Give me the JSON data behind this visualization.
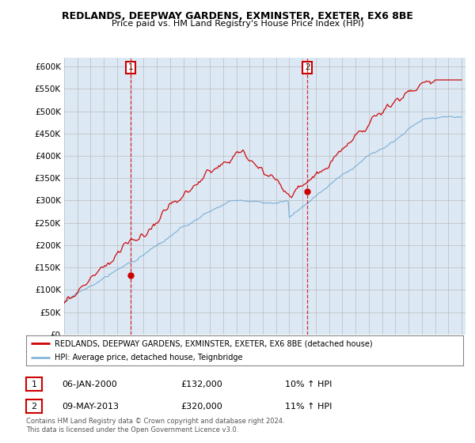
{
  "title": "REDLANDS, DEEPWAY GARDENS, EXMINSTER, EXETER, EX6 8BE",
  "subtitle": "Price paid vs. HM Land Registry's House Price Index (HPI)",
  "legend_line1": "REDLANDS, DEEPWAY GARDENS, EXMINSTER, EXETER, EX6 8BE (detached house)",
  "legend_line2": "HPI: Average price, detached house, Teignbridge",
  "annotation1_date": "06-JAN-2000",
  "annotation1_price": "£132,000",
  "annotation1_hpi": "10% ↑ HPI",
  "annotation1_year": 2000.04,
  "annotation1_value": 132000,
  "annotation2_date": "09-MAY-2013",
  "annotation2_price": "£320,000",
  "annotation2_hpi": "11% ↑ HPI",
  "annotation2_year": 2013.36,
  "annotation2_value": 320000,
  "footnote": "Contains HM Land Registry data © Crown copyright and database right 2024.\nThis data is licensed under the Open Government Licence v3.0.",
  "red_color": "#cc0000",
  "blue_color": "#7bafd4",
  "plot_bg_color": "#dce9f5",
  "bg_color": "#ffffff",
  "grid_color": "#bbbbbb",
  "ylim": [
    0,
    620000
  ],
  "yticks": [
    0,
    50000,
    100000,
    150000,
    200000,
    250000,
    300000,
    350000,
    400000,
    450000,
    500000,
    550000,
    600000
  ]
}
